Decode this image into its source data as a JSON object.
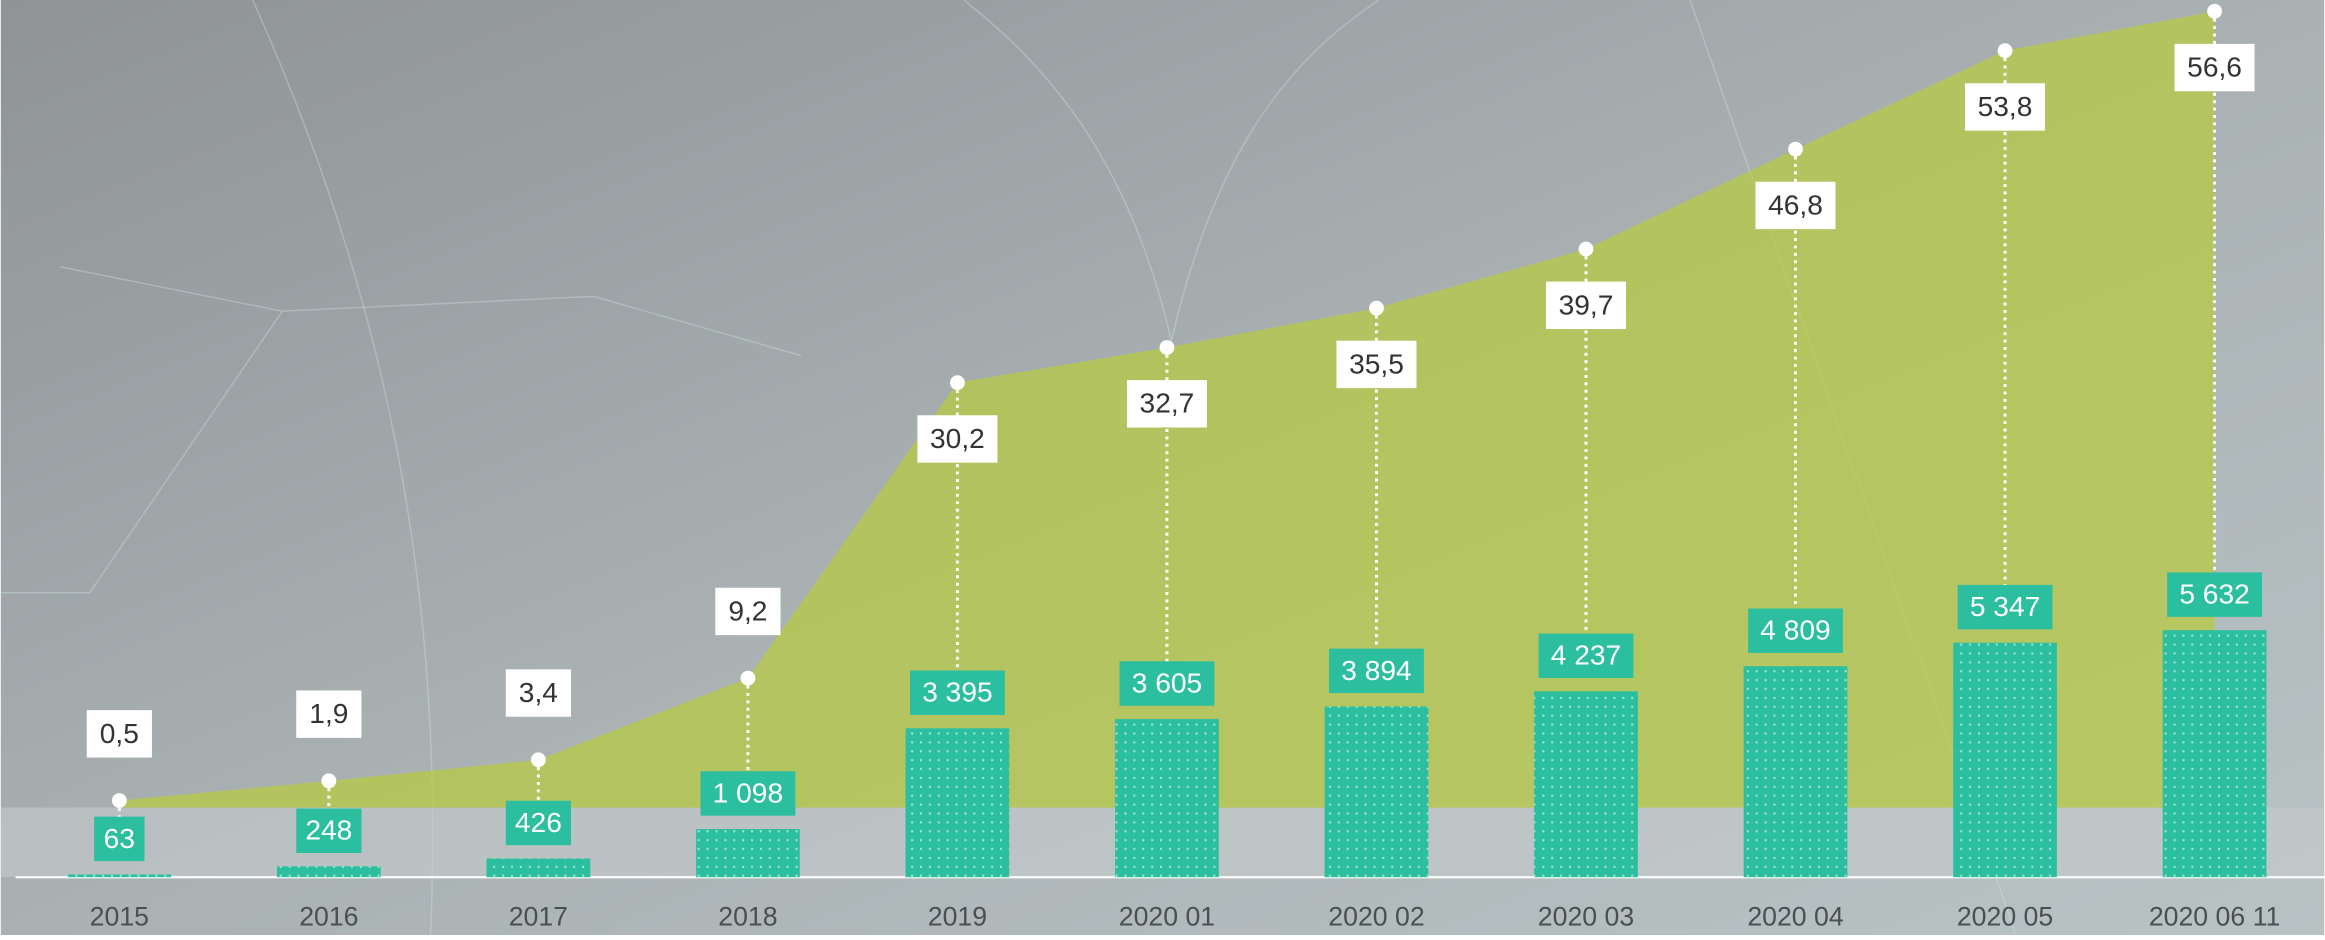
{
  "chart_data": {
    "type": "bar",
    "categories": [
      "2015",
      "2016",
      "2017",
      "2018",
      "2019",
      "2020 01",
      "2020 02",
      "2020 03",
      "2020 04",
      "2020 05",
      "2020 06 11"
    ],
    "series": [
      {
        "type": "bar",
        "color": "#2bbf9f",
        "values": [
          63,
          248,
          426,
          1098,
          3395,
          3605,
          3894,
          4237,
          4809,
          5347,
          5632
        ],
        "value_labels": [
          "63",
          "248",
          "426",
          "1 098",
          "3 395",
          "3 605",
          "3 894",
          "4 237",
          "4 809",
          "5 347",
          "5 632"
        ]
      },
      {
        "type": "area",
        "axis": "y2",
        "color": "#b8cc3c",
        "values": [
          0.5,
          1.9,
          3.4,
          9.2,
          30.2,
          32.7,
          35.5,
          39.7,
          46.8,
          53.8,
          56.6
        ],
        "value_labels": [
          "0,5",
          "1,9",
          "3,4",
          "9,2",
          "30,2",
          "32,7",
          "35,5",
          "39,7",
          "46,8",
          "53,8",
          "56,6"
        ]
      }
    ],
    "ylim": [
      0,
      20000
    ],
    "y2lim": [
      0,
      57.4
    ],
    "grid": false
  }
}
